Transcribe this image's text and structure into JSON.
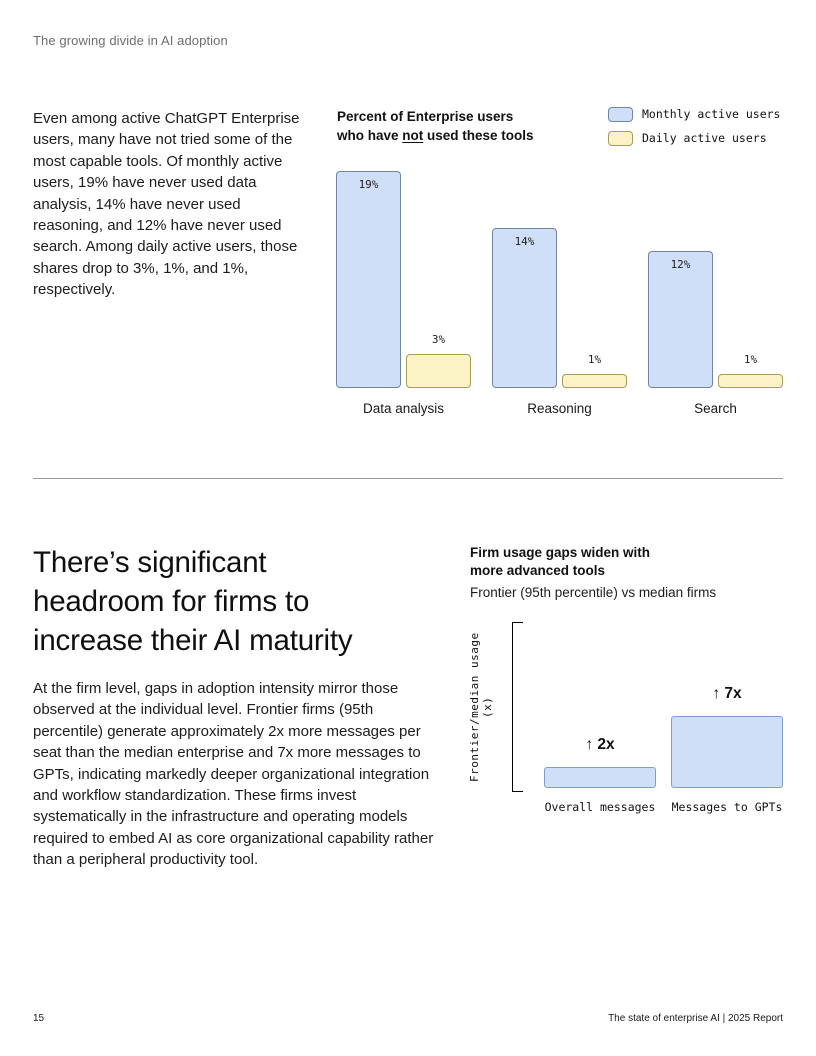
{
  "page": {
    "header": "The growing divide in AI adoption",
    "footer_page_number": "15",
    "footer_right": "The state of enterprise AI  |  2025 Report"
  },
  "section1": {
    "paragraph": "Even among active ChatGPT Enterprise users, many have not tried some of the most capable tools. Of monthly active users, 19% have never used data analysis, 14% have never used reasoning, and 12% have never used search. Among daily active users, those shares drop to 3%, 1%, and 1%, respectively."
  },
  "section2": {
    "heading": "There’s significant headroom for firms to increase their AI maturity",
    "heading_lines": [
      "There’s significant",
      "headroom for firms to",
      "increase their AI maturity"
    ],
    "paragraph": "At the firm level, gaps in adoption intensity mirror those observed at the individual level. Frontier firms (95th percentile) generate approximately 2x more messages per seat than the median enterprise and 7x more messages to GPTs, indicating markedly deeper organizational integration and workflow standardization. These firms invest systematically in the infrastructure and operating models required to embed AI as core organizational capability rather than a peripheral productivity tool."
  },
  "chart_data": [
    {
      "type": "bar",
      "title": "Percent of Enterprise users who have not used these tools",
      "title_line1": "Percent of Enterprise users",
      "title_line2_pre": "who have ",
      "title_line2_underlined": "not",
      "title_line2_post": " used these tools",
      "categories": [
        "Data analysis",
        "Reasoning",
        "Search"
      ],
      "series": [
        {
          "name": "Monthly active users",
          "values": [
            19,
            14,
            12
          ],
          "value_labels": [
            "19%",
            "14%",
            "12%"
          ],
          "color": "#cfdff7",
          "border": "#6f84a8",
          "label_position": "inside"
        },
        {
          "name": "Daily active users",
          "values": [
            3,
            1,
            1
          ],
          "value_labels": [
            "3%",
            "1%",
            "1%"
          ],
          "color": "#fbf2c5",
          "border": "#a79d54",
          "label_position": "outside"
        }
      ],
      "unit": "%",
      "ylim": [
        0,
        19
      ],
      "legend_position": "top-right",
      "axes_visible": false,
      "grid": false
    },
    {
      "type": "bar",
      "title": "Firm usage gaps widen with more advanced tools",
      "title_line1": "Firm usage gaps widen with",
      "title_line2": "more advanced tools",
      "subtitle": "Frontier (95th percentile) vs median firms",
      "ylabel": "Frontier/median usage (x)",
      "categories": [
        "Overall messages",
        "Messages to GPTs"
      ],
      "values": [
        2,
        7
      ],
      "value_labels": [
        "↑ 2x",
        "↑ 7x"
      ],
      "bar_color": "#cfdff7",
      "bar_border": "#7d9cd4",
      "ylim": [
        0,
        17
      ],
      "axes_visible": "left-bracket-only",
      "grid": false
    }
  ]
}
